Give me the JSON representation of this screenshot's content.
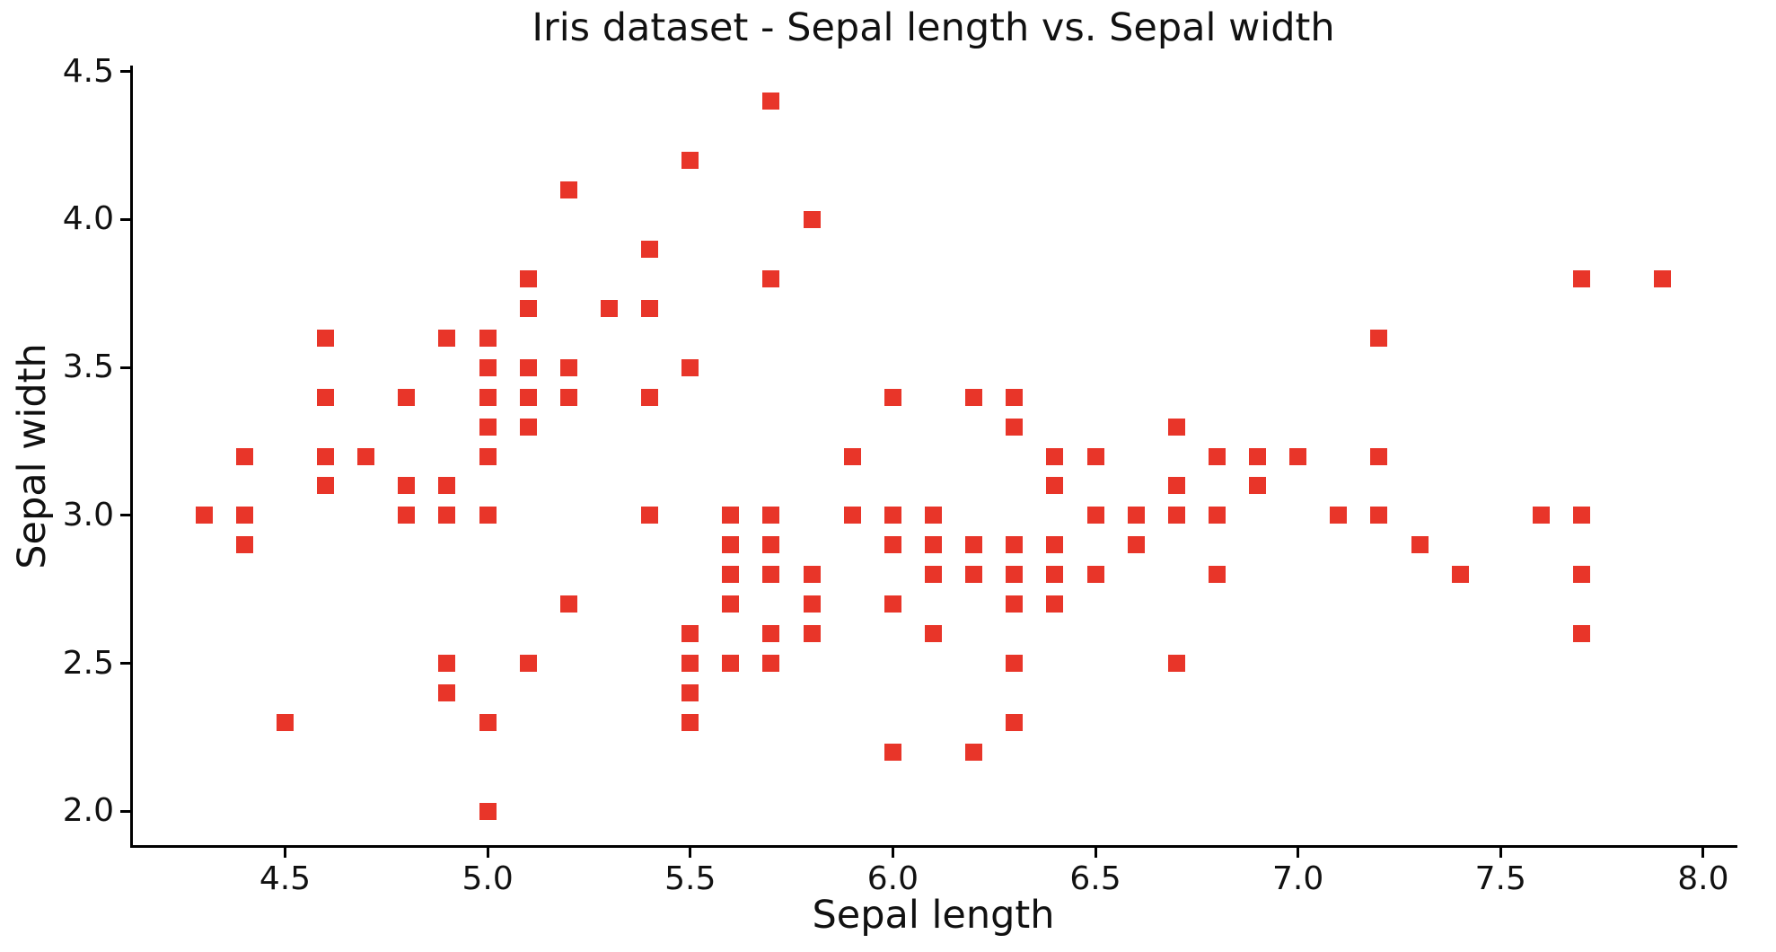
{
  "figure": {
    "title": "Iris dataset - Sepal length vs. Sepal width",
    "xlabel": "Sepal length",
    "ylabel": "Sepal width"
  },
  "chart_data": {
    "type": "scatter",
    "title": "Iris dataset - Sepal length vs. Sepal width",
    "xlabel": "Sepal length",
    "ylabel": "Sepal width",
    "legend": "none",
    "grid": false,
    "marker_shape": "square",
    "marker_color": "#e83529",
    "axis_color": "#000000",
    "text_color": "#111111",
    "xlim": [
      4.12,
      8.08
    ],
    "ylim": [
      1.88,
      4.52
    ],
    "xticks": [
      4.5,
      5.0,
      5.5,
      6.0,
      6.5,
      7.0,
      7.5,
      8.0
    ],
    "yticks": [
      2.0,
      2.5,
      3.0,
      3.5,
      4.0,
      4.5
    ],
    "xtick_labels": [
      "4.5",
      "5.0",
      "5.5",
      "6.0",
      "6.5",
      "7.0",
      "7.5",
      "8.0"
    ],
    "ytick_labels": [
      "2.0",
      "2.5",
      "3.0",
      "3.5",
      "4.0",
      "4.5"
    ],
    "points": [
      [
        5.1,
        3.5
      ],
      [
        4.9,
        3.0
      ],
      [
        4.7,
        3.2
      ],
      [
        4.6,
        3.1
      ],
      [
        5.0,
        3.6
      ],
      [
        5.4,
        3.9
      ],
      [
        4.6,
        3.4
      ],
      [
        5.0,
        3.4
      ],
      [
        4.4,
        2.9
      ],
      [
        4.9,
        3.1
      ],
      [
        5.4,
        3.7
      ],
      [
        4.8,
        3.4
      ],
      [
        4.8,
        3.0
      ],
      [
        4.3,
        3.0
      ],
      [
        5.8,
        4.0
      ],
      [
        5.7,
        4.4
      ],
      [
        5.4,
        3.9
      ],
      [
        5.1,
        3.5
      ],
      [
        5.7,
        3.8
      ],
      [
        5.1,
        3.8
      ],
      [
        5.4,
        3.4
      ],
      [
        5.1,
        3.7
      ],
      [
        4.6,
        3.6
      ],
      [
        5.1,
        3.3
      ],
      [
        4.8,
        3.4
      ],
      [
        5.0,
        3.0
      ],
      [
        5.0,
        3.4
      ],
      [
        5.2,
        3.5
      ],
      [
        5.2,
        3.4
      ],
      [
        4.7,
        3.2
      ],
      [
        4.8,
        3.1
      ],
      [
        5.4,
        3.4
      ],
      [
        5.2,
        4.1
      ],
      [
        5.5,
        4.2
      ],
      [
        4.9,
        3.1
      ],
      [
        5.0,
        3.2
      ],
      [
        5.5,
        3.5
      ],
      [
        4.9,
        3.6
      ],
      [
        4.4,
        3.0
      ],
      [
        5.1,
        3.4
      ],
      [
        5.0,
        3.5
      ],
      [
        4.5,
        2.3
      ],
      [
        4.4,
        3.2
      ],
      [
        5.0,
        3.5
      ],
      [
        5.1,
        3.8
      ],
      [
        4.8,
        3.0
      ],
      [
        5.1,
        3.8
      ],
      [
        4.6,
        3.2
      ],
      [
        5.3,
        3.7
      ],
      [
        5.0,
        3.3
      ],
      [
        7.0,
        3.2
      ],
      [
        6.4,
        3.2
      ],
      [
        6.9,
        3.1
      ],
      [
        5.5,
        2.3
      ],
      [
        6.5,
        2.8
      ],
      [
        5.7,
        2.8
      ],
      [
        6.3,
        3.3
      ],
      [
        4.9,
        2.4
      ],
      [
        6.6,
        2.9
      ],
      [
        5.2,
        2.7
      ],
      [
        5.0,
        2.0
      ],
      [
        5.9,
        3.0
      ],
      [
        6.0,
        2.2
      ],
      [
        6.1,
        2.9
      ],
      [
        5.6,
        2.9
      ],
      [
        6.7,
        3.1
      ],
      [
        5.6,
        3.0
      ],
      [
        5.8,
        2.7
      ],
      [
        6.2,
        2.2
      ],
      [
        5.6,
        2.5
      ],
      [
        5.9,
        3.2
      ],
      [
        6.1,
        2.8
      ],
      [
        6.3,
        2.5
      ],
      [
        6.1,
        2.8
      ],
      [
        6.4,
        2.9
      ],
      [
        6.6,
        3.0
      ],
      [
        6.8,
        2.8
      ],
      [
        6.7,
        3.0
      ],
      [
        6.0,
        2.9
      ],
      [
        5.7,
        2.6
      ],
      [
        5.5,
        2.4
      ],
      [
        5.5,
        2.4
      ],
      [
        5.8,
        2.7
      ],
      [
        6.0,
        2.7
      ],
      [
        5.4,
        3.0
      ],
      [
        6.0,
        3.4
      ],
      [
        6.7,
        3.1
      ],
      [
        6.3,
        2.3
      ],
      [
        5.6,
        3.0
      ],
      [
        5.5,
        2.5
      ],
      [
        5.5,
        2.6
      ],
      [
        6.1,
        3.0
      ],
      [
        5.8,
        2.6
      ],
      [
        5.0,
        2.3
      ],
      [
        5.6,
        2.7
      ],
      [
        5.7,
        3.0
      ],
      [
        5.7,
        2.9
      ],
      [
        6.2,
        2.9
      ],
      [
        5.1,
        2.5
      ],
      [
        5.7,
        2.8
      ],
      [
        6.3,
        3.3
      ],
      [
        5.8,
        2.7
      ],
      [
        7.1,
        3.0
      ],
      [
        6.3,
        2.9
      ],
      [
        6.5,
        3.0
      ],
      [
        7.6,
        3.0
      ],
      [
        4.9,
        2.5
      ],
      [
        7.3,
        2.9
      ],
      [
        6.7,
        2.5
      ],
      [
        7.2,
        3.6
      ],
      [
        6.5,
        3.2
      ],
      [
        6.4,
        2.7
      ],
      [
        6.8,
        3.0
      ],
      [
        5.7,
        2.5
      ],
      [
        5.8,
        2.8
      ],
      [
        6.4,
        3.2
      ],
      [
        6.5,
        3.0
      ],
      [
        7.7,
        3.8
      ],
      [
        7.7,
        2.6
      ],
      [
        6.0,
        2.2
      ],
      [
        6.9,
        3.2
      ],
      [
        5.6,
        2.8
      ],
      [
        7.7,
        2.8
      ],
      [
        6.3,
        2.7
      ],
      [
        6.7,
        3.3
      ],
      [
        7.2,
        3.2
      ],
      [
        6.2,
        2.8
      ],
      [
        6.1,
        3.0
      ],
      [
        6.4,
        2.8
      ],
      [
        7.2,
        3.0
      ],
      [
        7.4,
        2.8
      ],
      [
        7.9,
        3.8
      ],
      [
        6.4,
        2.8
      ],
      [
        6.3,
        2.8
      ],
      [
        6.1,
        2.6
      ],
      [
        7.7,
        3.0
      ],
      [
        6.3,
        3.4
      ],
      [
        6.4,
        3.1
      ],
      [
        6.0,
        3.0
      ],
      [
        6.9,
        3.1
      ],
      [
        6.7,
        3.1
      ],
      [
        6.9,
        3.1
      ],
      [
        5.8,
        2.7
      ],
      [
        6.8,
        3.2
      ],
      [
        6.7,
        3.3
      ],
      [
        6.7,
        3.0
      ],
      [
        6.3,
        2.5
      ],
      [
        6.5,
        3.0
      ],
      [
        6.2,
        3.4
      ],
      [
        5.9,
        3.0
      ]
    ]
  }
}
